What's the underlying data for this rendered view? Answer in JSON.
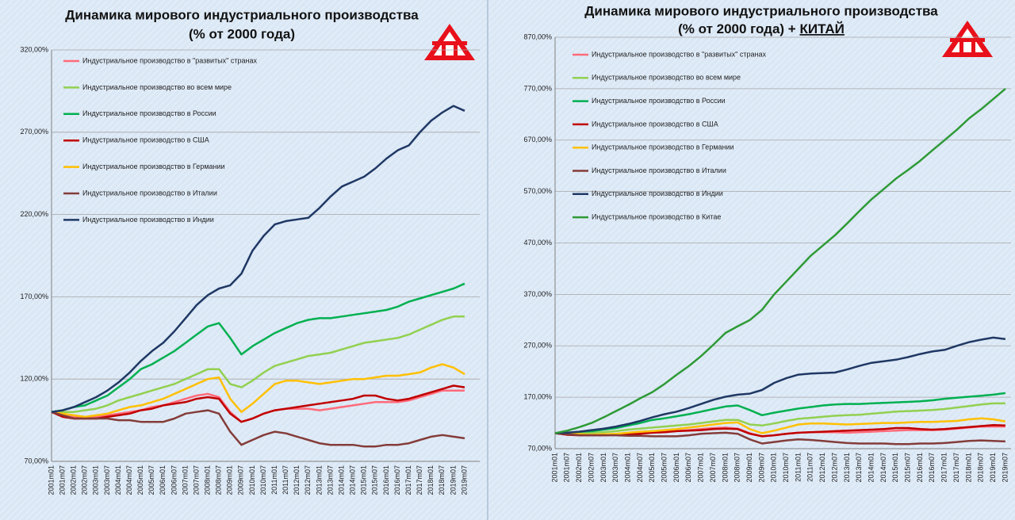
{
  "chart_data": [
    {
      "type": "line",
      "title": "Динамика мирового индустриального производства",
      "subtitle": "(% от 2000 года)",
      "categories": [
        "2001m01",
        "2001m07",
        "2002m01",
        "2002m07",
        "2003m01",
        "2003m07",
        "2004m01",
        "2004m07",
        "2005m01",
        "2005m07",
        "2006m01",
        "2006m07",
        "2007m01",
        "2007m07",
        "2008m01",
        "2008m07",
        "2009m01",
        "2009m07",
        "2010m01",
        "2010m07",
        "2011m01",
        "2011m07",
        "2012m01",
        "2012m07",
        "2013m01",
        "2013m07",
        "2014m01",
        "2014m07",
        "2015m01",
        "2015m07",
        "2016m01",
        "2016m07",
        "2017m01",
        "2017m07",
        "2018m01",
        "2018m07",
        "2019m01",
        "2019m07"
      ],
      "ylim": [
        70,
        320
      ],
      "yticks": [
        {
          "value": 70,
          "label": "70,00%"
        },
        {
          "value": 120,
          "label": "120,00%"
        },
        {
          "value": 170,
          "label": "170,00%"
        },
        {
          "value": 220,
          "label": "220,00%"
        },
        {
          "value": 270,
          "label": "270,00%"
        },
        {
          "value": 320,
          "label": "320,00%"
        }
      ],
      "grid": true,
      "series": [
        {
          "name": "Индустриальное производство в \"развитых\" странах",
          "color": "#ff6b7a",
          "values": [
            100,
            98,
            97,
            97,
            97,
            98,
            99,
            100,
            101,
            103,
            104,
            106,
            108,
            110,
            111,
            109,
            100,
            94,
            96,
            99,
            101,
            102,
            102,
            102,
            101,
            102,
            103,
            104,
            105,
            106,
            106,
            106,
            107,
            109,
            111,
            113,
            113,
            113
          ]
        },
        {
          "name": "Индустриальное производство во всем мире",
          "color": "#92d050",
          "values": [
            100,
            100,
            100,
            101,
            102,
            104,
            107,
            109,
            111,
            113,
            115,
            117,
            120,
            123,
            126,
            126,
            117,
            115,
            119,
            124,
            128,
            130,
            132,
            134,
            135,
            136,
            138,
            140,
            142,
            143,
            144,
            145,
            147,
            150,
            153,
            156,
            158,
            158
          ]
        },
        {
          "name": "Индустриальное производство в России",
          "color": "#00b050",
          "values": [
            100,
            101,
            103,
            104,
            107,
            110,
            115,
            120,
            126,
            129,
            133,
            137,
            142,
            147,
            152,
            154,
            145,
            135,
            140,
            144,
            148,
            151,
            154,
            156,
            157,
            157,
            158,
            159,
            160,
            161,
            162,
            164,
            167,
            169,
            171,
            173,
            175,
            178
          ]
        },
        {
          "name": "Индустриальное производство в США",
          "color": "#c00000",
          "values": [
            100,
            97,
            96,
            96,
            96,
            97,
            98,
            99,
            101,
            102,
            104,
            105,
            106,
            108,
            109,
            108,
            99,
            94,
            96,
            99,
            101,
            102,
            103,
            104,
            105,
            106,
            107,
            108,
            110,
            110,
            108,
            107,
            108,
            110,
            112,
            114,
            116,
            115
          ]
        },
        {
          "name": "Индустриальное производство в Германии",
          "color": "#ffc000",
          "values": [
            100,
            99,
            98,
            97,
            98,
            99,
            101,
            103,
            104,
            106,
            108,
            111,
            114,
            117,
            120,
            121,
            108,
            100,
            105,
            111,
            117,
            119,
            119,
            118,
            117,
            118,
            119,
            120,
            120,
            121,
            122,
            122,
            123,
            124,
            127,
            129,
            127,
            123
          ]
        },
        {
          "name": "Индустриальное производство в Италии",
          "color": "#843c39",
          "values": [
            100,
            98,
            96,
            96,
            96,
            96,
            95,
            95,
            94,
            94,
            94,
            96,
            99,
            100,
            101,
            99,
            88,
            80,
            83,
            86,
            88,
            87,
            85,
            83,
            81,
            80,
            80,
            80,
            79,
            79,
            80,
            80,
            81,
            83,
            85,
            86,
            85,
            84
          ]
        },
        {
          "name": "Индустриальное производство в Индии",
          "color": "#1f3864",
          "values": [
            100,
            101,
            103,
            106,
            109,
            113,
            118,
            124,
            131,
            137,
            142,
            149,
            157,
            165,
            171,
            175,
            177,
            184,
            198,
            207,
            214,
            216,
            217,
            218,
            224,
            231,
            237,
            240,
            243,
            248,
            254,
            259,
            262,
            270,
            277,
            282,
            286,
            283
          ]
        }
      ]
    },
    {
      "type": "line",
      "title": "Динамика мирового индустриального производства",
      "subtitle": "(% от 2000 года) +",
      "subtitle_emphasis": "КИТАЙ",
      "categories": [
        "2001m01",
        "2001m07",
        "2002m01",
        "2002m07",
        "2003m01",
        "2003m07",
        "2004m01",
        "2004m07",
        "2005m01",
        "2005m07",
        "2006m01",
        "2006m07",
        "2007m01",
        "2007m07",
        "2008m01",
        "2008m07",
        "2009m01",
        "2009m07",
        "2010m01",
        "2010m07",
        "2011m01",
        "2011m07",
        "2012m01",
        "2012m07",
        "2013m01",
        "2013m07",
        "2014m01",
        "2014m07",
        "2015m01",
        "2015m07",
        "2016m01",
        "2016m07",
        "2017m01",
        "2017m07",
        "2018m01",
        "2018m07",
        "2019m01",
        "2019m07"
      ],
      "ylim": [
        70,
        870
      ],
      "yticks": [
        {
          "value": 70,
          "label": "70,00%"
        },
        {
          "value": 170,
          "label": "170,00%"
        },
        {
          "value": 270,
          "label": "270,00%"
        },
        {
          "value": 370,
          "label": "370,00%"
        },
        {
          "value": 470,
          "label": "470,00%"
        },
        {
          "value": 570,
          "label": "570,00%"
        },
        {
          "value": 670,
          "label": "670,00%"
        },
        {
          "value": 770,
          "label": "770,00%"
        },
        {
          "value": 870,
          "label": "870,00%"
        }
      ],
      "grid": true,
      "series": [
        {
          "name": "Индустриальное производство в \"развитых\" странах",
          "color": "#ff6b7a",
          "values": [
            100,
            98,
            97,
            97,
            97,
            98,
            99,
            100,
            101,
            103,
            104,
            106,
            108,
            110,
            111,
            109,
            100,
            94,
            96,
            99,
            101,
            102,
            102,
            102,
            101,
            102,
            103,
            104,
            105,
            106,
            106,
            106,
            107,
            109,
            111,
            113,
            113,
            113
          ]
        },
        {
          "name": "Индустриальное производство во всем мире",
          "color": "#92d050",
          "values": [
            100,
            100,
            100,
            101,
            102,
            104,
            107,
            109,
            111,
            113,
            115,
            117,
            120,
            123,
            126,
            126,
            117,
            115,
            119,
            124,
            128,
            130,
            132,
            134,
            135,
            136,
            138,
            140,
            142,
            143,
            144,
            145,
            147,
            150,
            153,
            156,
            158,
            158
          ]
        },
        {
          "name": "Индустриальное производство в России",
          "color": "#00b050",
          "values": [
            100,
            101,
            103,
            104,
            107,
            110,
            115,
            120,
            126,
            129,
            133,
            137,
            142,
            147,
            152,
            154,
            145,
            135,
            140,
            144,
            148,
            151,
            154,
            156,
            157,
            157,
            158,
            159,
            160,
            161,
            162,
            164,
            167,
            169,
            171,
            173,
            175,
            178
          ]
        },
        {
          "name": "Индустриальное производство в США",
          "color": "#c00000",
          "values": [
            100,
            97,
            96,
            96,
            96,
            97,
            98,
            99,
            101,
            102,
            104,
            105,
            106,
            108,
            109,
            108,
            99,
            94,
            96,
            99,
            101,
            102,
            103,
            104,
            105,
            106,
            107,
            108,
            110,
            110,
            108,
            107,
            108,
            110,
            112,
            114,
            116,
            115
          ]
        },
        {
          "name": "Индустриальное производство в Германии",
          "color": "#ffc000",
          "values": [
            100,
            99,
            98,
            97,
            98,
            99,
            101,
            103,
            104,
            106,
            108,
            111,
            114,
            117,
            120,
            121,
            108,
            100,
            105,
            111,
            117,
            119,
            119,
            118,
            117,
            118,
            119,
            120,
            120,
            121,
            122,
            122,
            123,
            124,
            127,
            129,
            127,
            123
          ]
        },
        {
          "name": "Индустриальное производство в Италии",
          "color": "#843c39",
          "values": [
            100,
            98,
            96,
            96,
            96,
            96,
            95,
            95,
            94,
            94,
            94,
            96,
            99,
            100,
            101,
            99,
            88,
            80,
            83,
            86,
            88,
            87,
            85,
            83,
            81,
            80,
            80,
            80,
            79,
            79,
            80,
            80,
            81,
            83,
            85,
            86,
            85,
            84
          ]
        },
        {
          "name": "Индустриальное производство в Индии",
          "color": "#1f3864",
          "values": [
            100,
            101,
            103,
            106,
            109,
            113,
            118,
            124,
            131,
            137,
            142,
            149,
            157,
            165,
            171,
            175,
            177,
            184,
            198,
            207,
            214,
            216,
            217,
            218,
            224,
            231,
            237,
            240,
            243,
            248,
            254,
            259,
            262,
            270,
            277,
            282,
            286,
            283
          ]
        },
        {
          "name": "Индустриальное производство в Китае",
          "color": "#2e9a36",
          "values": [
            100,
            105,
            112,
            120,
            131,
            143,
            155,
            168,
            180,
            196,
            214,
            231,
            250,
            272,
            295,
            308,
            320,
            340,
            370,
            395,
            420,
            445,
            465,
            485,
            508,
            532,
            555,
            575,
            595,
            612,
            630,
            650,
            670,
            690,
            712,
            730,
            750,
            770
          ]
        }
      ]
    }
  ]
}
